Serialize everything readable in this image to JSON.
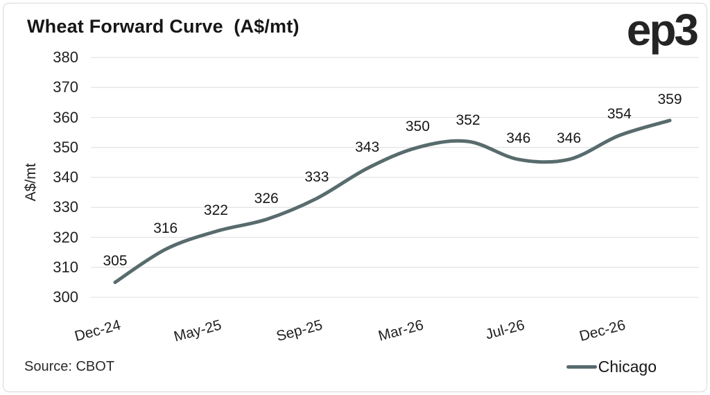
{
  "header": {
    "title": "Wheat Forward Curve  (A$/mt)",
    "logo": "ep3"
  },
  "footer": {
    "source": "Source: CBOT"
  },
  "legend": {
    "series_label": "Chicago"
  },
  "colors": {
    "line": "#586b6d",
    "grid": "#e3e3e3",
    "text": "#1f1f1f",
    "border": "#d8d8d8"
  },
  "chart_data": {
    "type": "line",
    "title": "Wheat Forward Curve (A$/mt)",
    "xlabel": "",
    "ylabel": "A$/mt",
    "series": [
      {
        "name": "Chicago",
        "values": [
          305,
          316,
          322,
          326,
          333,
          343,
          350,
          352,
          346,
          346,
          354,
          359
        ],
        "color": "#586b6d"
      }
    ],
    "x_tick_labels": [
      "Dec-24",
      "May-25",
      "Sep-25",
      "Mar-26",
      "Jul-26",
      "Dec-26"
    ],
    "x_tick_indices": [
      0,
      2,
      4,
      6,
      8,
      10
    ],
    "y_ticks": [
      300,
      310,
      320,
      330,
      340,
      350,
      360,
      370,
      380
    ],
    "ylim": [
      300,
      380
    ],
    "grid": "horizontal-only",
    "legend_position": "bottom-right",
    "data_labels": true,
    "line_style": "smooth",
    "source": "Source: CBOT"
  }
}
